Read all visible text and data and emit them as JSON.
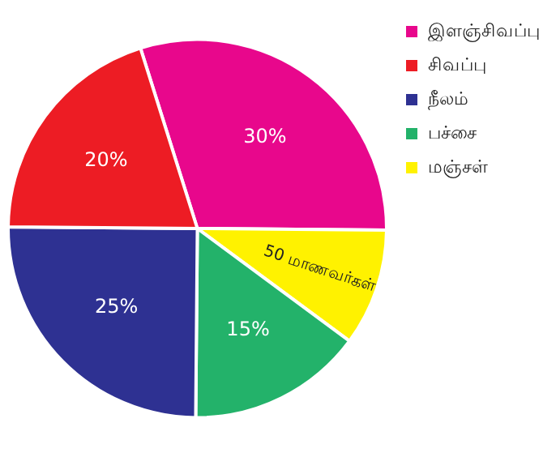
{
  "chart_data": {
    "type": "pie",
    "categories": [
      "இளஞ்சிவப்பு",
      "மஞ்சள்",
      "பச்சை",
      "நீலம்",
      "சிவப்பு"
    ],
    "values": [
      30,
      10,
      15,
      25,
      20
    ],
    "colors": [
      "#e8078c",
      "#fff200",
      "#23b26a",
      "#2e3192",
      "#ed1c24"
    ],
    "value_labels": [
      "30%",
      null,
      "15%",
      "25%",
      "20%"
    ],
    "annotations": [
      {
        "text": "50 மாணவர்கள்",
        "x": "மஞ்சள்"
      }
    ],
    "legend": "top right"
  }
}
